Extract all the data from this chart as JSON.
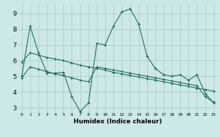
{
  "xlabel": "Humidex (Indice chaleur)",
  "background_color": "#cce8e8",
  "grid_color": "#aacccc",
  "line_color": "#1a6b5a",
  "xlim": [
    -0.5,
    23.5
  ],
  "ylim": [
    2.7,
    9.6
  ],
  "xticks": [
    0,
    1,
    2,
    3,
    4,
    5,
    6,
    7,
    8,
    9,
    10,
    11,
    12,
    13,
    14,
    15,
    16,
    17,
    18,
    19,
    20,
    21,
    22,
    23
  ],
  "yticks": [
    3,
    4,
    5,
    6,
    7,
    8,
    9
  ],
  "line1_x": [
    0,
    1,
    2,
    3,
    4,
    5,
    6,
    7,
    8,
    9,
    10,
    11,
    12,
    13,
    14,
    15,
    16,
    17,
    18,
    19,
    20,
    21,
    22,
    23
  ],
  "line1_y": [
    5.0,
    8.2,
    6.5,
    5.2,
    5.2,
    5.25,
    3.7,
    2.75,
    3.3,
    7.1,
    7.0,
    8.2,
    9.1,
    9.3,
    8.35,
    6.3,
    5.5,
    5.1,
    5.0,
    5.1,
    4.75,
    5.1,
    3.9,
    3.3
  ],
  "line2_x": [
    0,
    1,
    2,
    3,
    4,
    5,
    6,
    7,
    8,
    9,
    10,
    11,
    12,
    13,
    14,
    15,
    16,
    17,
    18,
    19,
    20,
    21,
    22,
    23
  ],
  "line2_y": [
    5.9,
    6.5,
    6.35,
    6.2,
    6.1,
    6.0,
    5.85,
    5.7,
    5.6,
    5.5,
    5.4,
    5.25,
    5.15,
    5.05,
    4.95,
    4.85,
    4.75,
    4.65,
    4.55,
    4.45,
    4.35,
    4.25,
    4.15,
    4.05
  ],
  "line3_x": [
    0,
    1,
    2,
    3,
    4,
    5,
    6,
    7,
    8,
    9,
    10,
    11,
    12,
    13,
    14,
    15,
    16,
    17,
    18,
    19,
    20,
    21,
    22,
    23
  ],
  "line3_y": [
    4.9,
    5.6,
    5.45,
    5.3,
    5.15,
    5.05,
    4.9,
    4.75,
    4.65,
    5.6,
    5.5,
    5.4,
    5.3,
    5.2,
    5.1,
    5.0,
    4.9,
    4.8,
    4.7,
    4.6,
    4.5,
    4.4,
    3.7,
    3.35
  ]
}
